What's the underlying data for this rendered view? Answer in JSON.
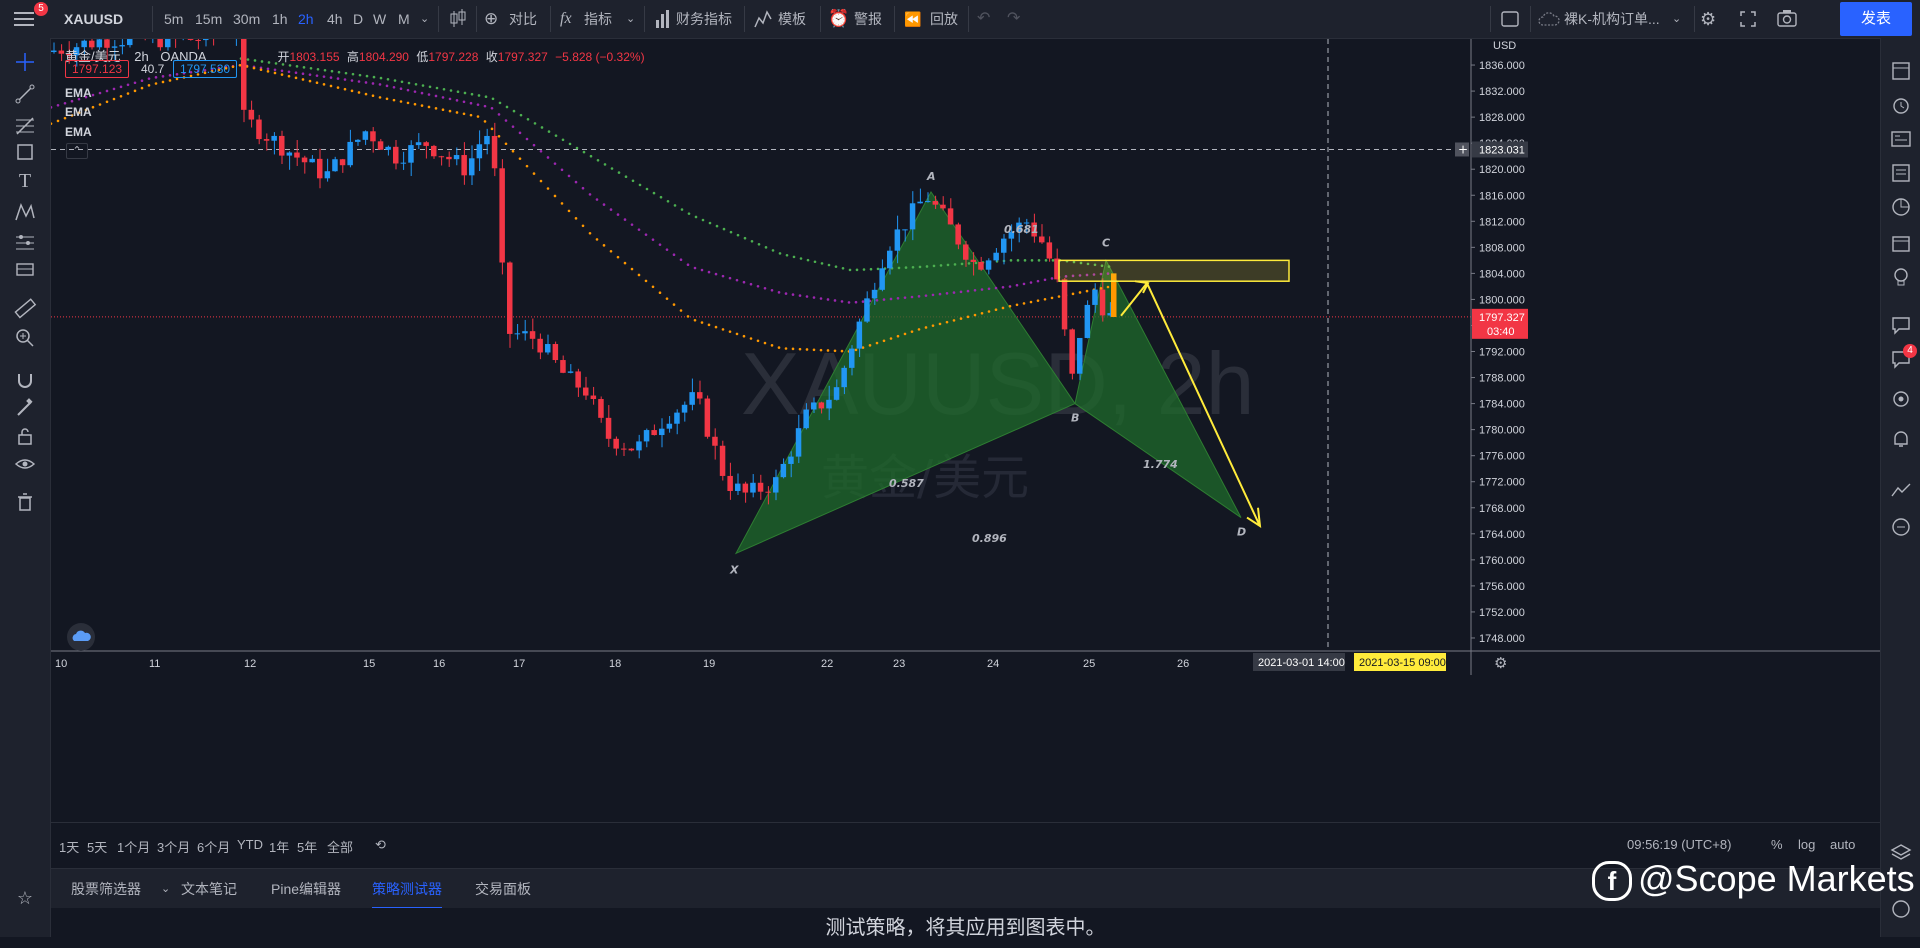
{
  "topbar": {
    "symbol": "XAUUSD",
    "notification_count": "5",
    "intervals": [
      "5m",
      "15m",
      "30m",
      "1h",
      "2h",
      "4h",
      "D",
      "W",
      "M"
    ],
    "active_interval": "2h",
    "compare_label": "对比",
    "indicators_label": "指标",
    "financials_label": "财务指标",
    "templates_label": "模板",
    "alert_label": "警报",
    "replay_label": "回放",
    "layout_name": "裸K-机构订单...",
    "publish_label": "发表"
  },
  "legend": {
    "title": "黄金/美元",
    "interval": "2h",
    "source": "OANDA",
    "open_label": "开",
    "open": "1803.155",
    "high_label": "高",
    "high": "1804.290",
    "low_label": "低",
    "low": "1797.228",
    "close_label": "收",
    "close": "1797.327",
    "change": "−5.828 (−0.32%)",
    "bid": "1797.123",
    "spread": "40.7",
    "ask": "1797.530",
    "indicators": [
      "EMA",
      "EMA",
      "EMA"
    ]
  },
  "watermark": {
    "symbol_line": "XAUUSD, 2h",
    "name_line": "黄金/美元"
  },
  "price_axis": {
    "currency": "USD",
    "ticks": [
      "1836.000",
      "1832.000",
      "1828.000",
      "1824.000",
      "1820.000",
      "1816.000",
      "1812.000",
      "1808.000",
      "1804.000",
      "1800.000",
      "1796.000",
      "1792.000",
      "1788.000",
      "1784.000",
      "1780.000",
      "1776.000",
      "1772.000",
      "1768.000",
      "1764.000",
      "1760.000",
      "1756.000",
      "1752.000",
      "1748.000"
    ],
    "crosshair_price": "1823.031",
    "last_price": "1797.327",
    "countdown": "03:40"
  },
  "time_axis": {
    "labels": [
      "10",
      "11",
      "12",
      "15",
      "16",
      "17",
      "18",
      "19",
      "22",
      "23",
      "24",
      "25",
      "26"
    ],
    "crosshair_date": "2021-03-01",
    "crosshair_time": "14:00",
    "highlight_date": "2021-03-15",
    "highlight_time": "09:00"
  },
  "pattern": {
    "points": {
      "X": "X",
      "A": "A",
      "B": "B",
      "C": "C",
      "D": "D"
    },
    "ratios": [
      "0.587",
      "0.896",
      "0.681",
      "1.774"
    ]
  },
  "chart_data": {
    "type": "candlestick",
    "symbol": "XAUUSD",
    "interval": "2h",
    "ylim": [
      1746,
      1840
    ],
    "pattern_prices": {
      "X": 1761,
      "A": 1816.5,
      "B": 1784,
      "C": 1806,
      "D": 1766.5
    },
    "zone": {
      "top": 1806,
      "bottom": 1802.8
    },
    "last_close": 1797.327,
    "colors": {
      "up": "#2196f3",
      "down": "#f23645",
      "pattern_fill": "#1f6b2b",
      "zone": "#ffeb3b",
      "ema_fast": "#4caf50",
      "ema_mid": "#9c27b0",
      "ema_slow": "#ff9800"
    }
  },
  "bottombar": {
    "ranges": [
      "1天",
      "5天",
      "1个月",
      "3个月",
      "6个月",
      "YTD",
      "1年",
      "5年",
      "全部"
    ],
    "clock": "09:56:19 (UTC+8)",
    "percent_label": "%",
    "log_label": "log",
    "auto_label": "auto"
  },
  "panel": {
    "tabs": [
      "股票筛选器",
      "文本笔记",
      "Pine编辑器",
      "策略测试器",
      "交易面板"
    ],
    "active_tab": "策略测试器",
    "message": "测试策略，将其应用到图表中。"
  },
  "branding": {
    "text": "@Scope Markets"
  },
  "right_badge": "4"
}
